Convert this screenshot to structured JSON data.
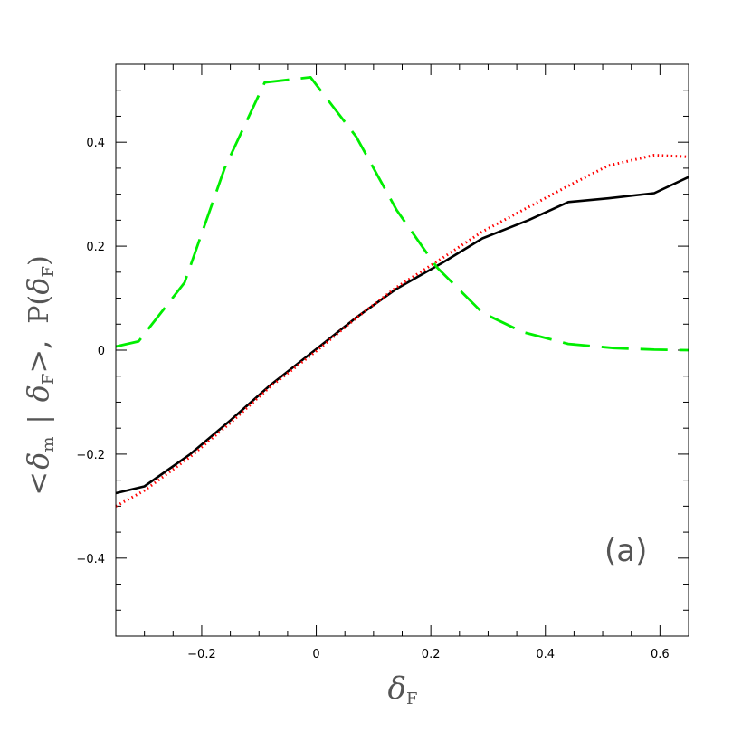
{
  "chart_data": {
    "type": "line",
    "xlim": [
      -0.35,
      0.65
    ],
    "ylim": [
      -0.55,
      0.55
    ],
    "x_ticks": [
      -0.2,
      0,
      0.2,
      0.4,
      0.6
    ],
    "x_tick_labels": [
      "−0.2",
      "0",
      "0.2",
      "0.4",
      "0.6"
    ],
    "y_ticks": [
      -0.4,
      -0.2,
      0,
      0.2,
      0.4
    ],
    "y_tick_labels": [
      "−0.4",
      "−0.2",
      "0",
      "0.2",
      "0.4"
    ],
    "x_minor_step": 0.05,
    "y_minor_step": 0.05,
    "xlabel": {
      "base": "δ",
      "sub": "F"
    },
    "ylabel": {
      "lt": "<",
      "delta1": "δ",
      "sub1": "m",
      "bar": "|",
      "delta2": "δ",
      "sub2": "F",
      "gt_comma": ">,",
      "p": "P(",
      "delta3": "δ",
      "sub3": "F",
      "close": ")"
    },
    "annotation": "(a)",
    "grid": false,
    "series": [
      {
        "style": "solid",
        "color": "#000000",
        "x": [
          -0.35,
          -0.3,
          -0.22,
          -0.15,
          -0.08,
          0.0,
          0.07,
          0.14,
          0.22,
          0.29,
          0.37,
          0.44,
          0.51,
          0.59,
          0.65
        ],
        "y": [
          -0.275,
          -0.262,
          -0.2,
          -0.135,
          -0.067,
          0.002,
          0.063,
          0.118,
          0.168,
          0.215,
          0.25,
          0.285,
          0.292,
          0.302,
          0.333
        ]
      },
      {
        "style": "dotted",
        "color": "#ff0000",
        "x": [
          -0.35,
          -0.3,
          -0.22,
          -0.15,
          -0.08,
          0.0,
          0.07,
          0.14,
          0.22,
          0.29,
          0.37,
          0.44,
          0.51,
          0.59,
          0.65
        ],
        "y": [
          -0.3,
          -0.27,
          -0.205,
          -0.14,
          -0.07,
          -0.002,
          0.062,
          0.121,
          0.177,
          0.228,
          0.275,
          0.316,
          0.355,
          0.375,
          0.372
        ]
      },
      {
        "style": "dashed",
        "color": "#00ee00",
        "x": [
          -0.35,
          -0.31,
          -0.23,
          -0.16,
          -0.09,
          -0.01,
          0.07,
          0.14,
          0.21,
          0.29,
          0.36,
          0.44,
          0.52,
          0.59,
          0.65
        ],
        "y": [
          0.007,
          0.017,
          0.13,
          0.35,
          0.515,
          0.525,
          0.41,
          0.27,
          0.16,
          0.072,
          0.035,
          0.012,
          0.004,
          0.001,
          0.0
        ]
      }
    ]
  }
}
